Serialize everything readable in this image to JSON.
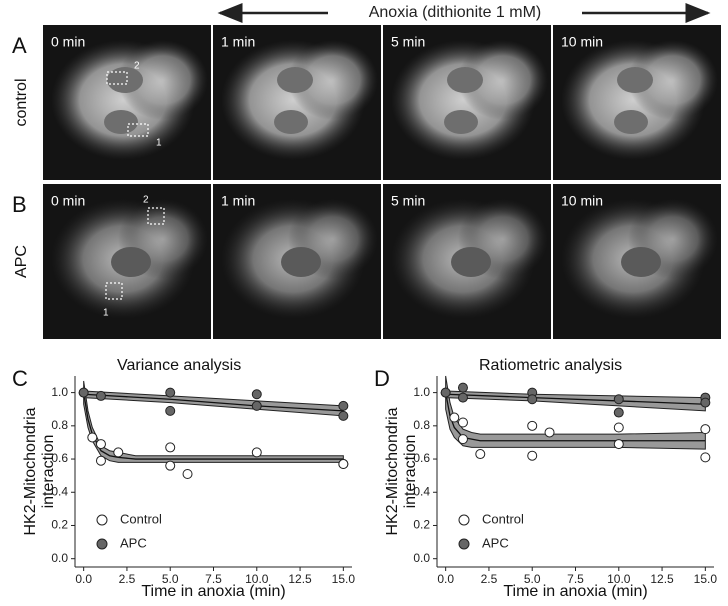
{
  "header": "Anoxia (dithionite 1 mM)",
  "micrographs": {
    "rows": [
      {
        "letter": "A",
        "condition": "control",
        "times": [
          "0 min",
          "1 min",
          "5 min",
          "10 min"
        ],
        "rois": [
          "2",
          "1"
        ]
      },
      {
        "letter": "B",
        "condition": "APC",
        "times": [
          "0 min",
          "1 min",
          "5 min",
          "10 min"
        ],
        "rois": [
          "2",
          "1"
        ]
      }
    ]
  },
  "chart_data": [
    {
      "type": "scatter",
      "letter": "C",
      "title": "Variance analysis",
      "xlabel": "Time in anoxia (min)",
      "ylabel": [
        "HK2-Mitochondria",
        "interaction"
      ],
      "xlim": [
        -0.5,
        15.5
      ],
      "ylim": [
        -0.05,
        1.1
      ],
      "xticks": [
        {
          "value": 0,
          "label": "0.0"
        },
        2.5,
        {
          "value": 5,
          "label": "5.0"
        },
        7.5,
        {
          "value": 10,
          "label": "10.0"
        },
        12.5,
        {
          "value": 15,
          "label": "15.0"
        }
      ],
      "yticks": [
        {
          "value": 0,
          "label": "0.0"
        },
        0.2,
        0.4,
        0.6,
        0.8,
        {
          "value": 1,
          "label": "1.0"
        }
      ],
      "legend": "lower left",
      "series": [
        {
          "name": "Control",
          "color": "#ffffff",
          "x": [
            0,
            0.5,
            1,
            1,
            2,
            5,
            5,
            6,
            10,
            15,
            15
          ],
          "values": [
            1.0,
            0.73,
            0.69,
            0.59,
            0.64,
            0.67,
            0.56,
            0.51,
            0.64,
            0.57,
            0.57
          ]
        },
        {
          "name": "APC",
          "color": "#666666",
          "x": [
            0,
            1,
            5,
            5,
            10,
            10,
            15,
            15
          ],
          "values": [
            1.0,
            0.98,
            1.0,
            0.89,
            0.99,
            0.92,
            0.92,
            0.86
          ]
        }
      ],
      "fits": [
        {
          "color": "#999999",
          "x": [
            0,
            0.25,
            0.5,
            1,
            1.5,
            2,
            3,
            5,
            10,
            15
          ],
          "values": [
            1.0,
            0.84,
            0.75,
            0.65,
            0.62,
            0.61,
            0.6,
            0.6,
            0.6,
            0.6
          ],
          "lower": [
            0.93,
            0.79,
            0.71,
            0.62,
            0.59,
            0.58,
            0.58,
            0.58,
            0.58,
            0.58
          ],
          "upper": [
            1.07,
            0.89,
            0.79,
            0.68,
            0.65,
            0.64,
            0.62,
            0.62,
            0.62,
            0.62
          ]
        },
        {
          "color": "#999999",
          "x": [
            0,
            5,
            10,
            15
          ],
          "values": [
            0.99,
            0.96,
            0.92,
            0.89
          ],
          "lower": [
            0.97,
            0.94,
            0.9,
            0.86
          ],
          "upper": [
            1.01,
            0.98,
            0.95,
            0.92
          ]
        }
      ]
    },
    {
      "type": "scatter",
      "letter": "D",
      "title": "Ratiometric analysis",
      "xlabel": "Time in anoxia (min)",
      "ylabel": [
        "HK2-Mitochondria",
        "interaction"
      ],
      "xlim": [
        -0.5,
        15.5
      ],
      "ylim": [
        -0.05,
        1.1
      ],
      "xticks": [
        {
          "value": 0,
          "label": "0.0"
        },
        2.5,
        {
          "value": 5,
          "label": "5.0"
        },
        7.5,
        {
          "value": 10,
          "label": "10.0"
        },
        12.5,
        {
          "value": 15,
          "label": "15.0"
        }
      ],
      "yticks": [
        {
          "value": 0,
          "label": "0.0"
        },
        0.2,
        0.4,
        0.6,
        0.8,
        {
          "value": 1,
          "label": "1.0"
        }
      ],
      "legend": "lower left",
      "series": [
        {
          "name": "Control",
          "color": "#ffffff",
          "x": [
            0,
            0.5,
            1,
            1,
            2,
            5,
            5,
            6,
            10,
            10,
            15,
            15
          ],
          "values": [
            1.0,
            0.85,
            0.82,
            0.72,
            0.63,
            0.8,
            0.62,
            0.76,
            0.79,
            0.69,
            0.78,
            0.61
          ]
        },
        {
          "name": "APC",
          "color": "#666666",
          "x": [
            0,
            1,
            1,
            5,
            5,
            10,
            10,
            15,
            15
          ],
          "values": [
            1.0,
            1.03,
            0.97,
            1.0,
            0.96,
            0.96,
            0.88,
            0.97,
            0.94
          ]
        }
      ],
      "fits": [
        {
          "color": "#999999",
          "x": [
            0,
            0.25,
            0.5,
            1,
            1.5,
            2,
            3,
            5,
            10,
            15
          ],
          "values": [
            1.0,
            0.86,
            0.79,
            0.73,
            0.72,
            0.71,
            0.71,
            0.71,
            0.71,
            0.71
          ],
          "lower": [
            0.9,
            0.78,
            0.73,
            0.68,
            0.67,
            0.67,
            0.67,
            0.67,
            0.67,
            0.66
          ],
          "upper": [
            1.1,
            0.94,
            0.85,
            0.78,
            0.76,
            0.75,
            0.75,
            0.75,
            0.75,
            0.76
          ]
        },
        {
          "color": "#999999",
          "x": [
            0,
            5,
            10,
            15
          ],
          "values": [
            0.99,
            0.97,
            0.95,
            0.93
          ],
          "lower": [
            0.97,
            0.95,
            0.92,
            0.89
          ],
          "upper": [
            1.01,
            0.99,
            0.98,
            0.97
          ]
        }
      ]
    }
  ]
}
